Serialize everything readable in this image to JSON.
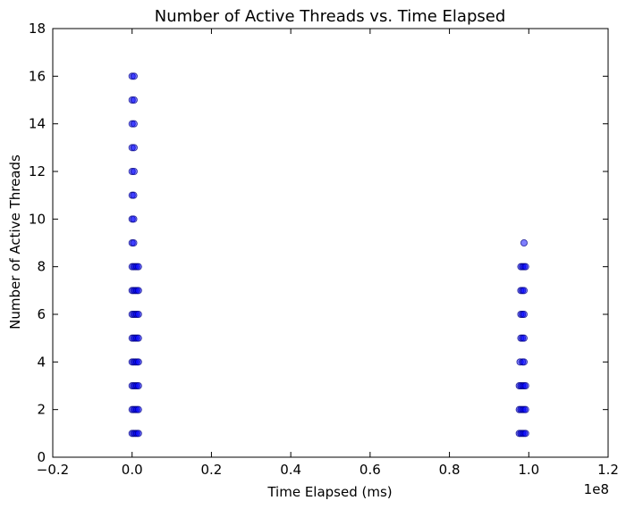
{
  "chart_data": {
    "type": "scatter",
    "title": "Number of Active Threads vs. Time Elapsed",
    "xlabel": "Time Elapsed (ms)",
    "ylabel": "Number of Active Threads",
    "x_offset_label": "1e8",
    "xlim": [
      -0.2,
      1.2
    ],
    "ylim": [
      0,
      18
    ],
    "x_scale_multiplier": 100000000,
    "x_ticks": [
      -0.2,
      0.0,
      0.2,
      0.4,
      0.6,
      0.8,
      1.0,
      1.2
    ],
    "x_tick_labels": [
      "−0.2",
      "0.0",
      "0.2",
      "0.4",
      "0.6",
      "0.8",
      "1.0",
      "1.2"
    ],
    "y_ticks": [
      0,
      2,
      4,
      6,
      8,
      10,
      12,
      14,
      16,
      18
    ],
    "y_tick_labels": [
      "0",
      "2",
      "4",
      "6",
      "8",
      "10",
      "12",
      "14",
      "16",
      "18"
    ],
    "grid": false,
    "marker_color": "#0000ff",
    "marker_edge_color": "#000080",
    "marker_opacity": 0.5,
    "series": [
      {
        "points": [
          {
            "x": 0.0,
            "y": 16
          },
          {
            "x": 0.005,
            "y": 16
          },
          {
            "x": 0.0,
            "y": 15
          },
          {
            "x": 0.005,
            "y": 15
          },
          {
            "x": 0.0,
            "y": 14
          },
          {
            "x": 0.005,
            "y": 14
          },
          {
            "x": 0.0,
            "y": 13
          },
          {
            "x": 0.005,
            "y": 13
          },
          {
            "x": 0.0,
            "y": 12
          },
          {
            "x": 0.005,
            "y": 12
          },
          {
            "x": 0.0,
            "y": 11
          },
          {
            "x": 0.004,
            "y": 11
          },
          {
            "x": 0.0,
            "y": 10
          },
          {
            "x": 0.004,
            "y": 10
          },
          {
            "x": 0.0,
            "y": 9
          },
          {
            "x": 0.004,
            "y": 9
          },
          {
            "x": 0.0,
            "y": 8
          },
          {
            "x": 0.004,
            "y": 8
          },
          {
            "x": 0.008,
            "y": 8
          },
          {
            "x": 0.012,
            "y": 8
          },
          {
            "x": 0.016,
            "y": 8
          },
          {
            "x": 0.0,
            "y": 7
          },
          {
            "x": 0.004,
            "y": 7
          },
          {
            "x": 0.008,
            "y": 7
          },
          {
            "x": 0.012,
            "y": 7
          },
          {
            "x": 0.016,
            "y": 7
          },
          {
            "x": 0.0,
            "y": 6
          },
          {
            "x": 0.004,
            "y": 6
          },
          {
            "x": 0.008,
            "y": 6
          },
          {
            "x": 0.012,
            "y": 6
          },
          {
            "x": 0.016,
            "y": 6
          },
          {
            "x": 0.0,
            "y": 5
          },
          {
            "x": 0.004,
            "y": 5
          },
          {
            "x": 0.008,
            "y": 5
          },
          {
            "x": 0.012,
            "y": 5
          },
          {
            "x": 0.016,
            "y": 5
          },
          {
            "x": 0.0,
            "y": 4
          },
          {
            "x": 0.004,
            "y": 4
          },
          {
            "x": 0.008,
            "y": 4
          },
          {
            "x": 0.012,
            "y": 4
          },
          {
            "x": 0.016,
            "y": 4
          },
          {
            "x": 0.0,
            "y": 3
          },
          {
            "x": 0.004,
            "y": 3
          },
          {
            "x": 0.008,
            "y": 3
          },
          {
            "x": 0.012,
            "y": 3
          },
          {
            "x": 0.016,
            "y": 3
          },
          {
            "x": 0.0,
            "y": 2
          },
          {
            "x": 0.004,
            "y": 2
          },
          {
            "x": 0.008,
            "y": 2
          },
          {
            "x": 0.012,
            "y": 2
          },
          {
            "x": 0.016,
            "y": 2
          },
          {
            "x": 0.0,
            "y": 1
          },
          {
            "x": 0.004,
            "y": 1
          },
          {
            "x": 0.008,
            "y": 1
          },
          {
            "x": 0.012,
            "y": 1
          },
          {
            "x": 0.016,
            "y": 1
          },
          {
            "x": 0.988,
            "y": 9
          },
          {
            "x": 0.98,
            "y": 8
          },
          {
            "x": 0.984,
            "y": 8
          },
          {
            "x": 0.988,
            "y": 8
          },
          {
            "x": 0.992,
            "y": 8
          },
          {
            "x": 0.98,
            "y": 7
          },
          {
            "x": 0.984,
            "y": 7
          },
          {
            "x": 0.988,
            "y": 7
          },
          {
            "x": 0.98,
            "y": 6
          },
          {
            "x": 0.984,
            "y": 6
          },
          {
            "x": 0.988,
            "y": 6
          },
          {
            "x": 0.98,
            "y": 5
          },
          {
            "x": 0.984,
            "y": 5
          },
          {
            "x": 0.988,
            "y": 5
          },
          {
            "x": 0.978,
            "y": 4
          },
          {
            "x": 0.984,
            "y": 4
          },
          {
            "x": 0.988,
            "y": 4
          },
          {
            "x": 0.976,
            "y": 3
          },
          {
            "x": 0.98,
            "y": 3
          },
          {
            "x": 0.984,
            "y": 3
          },
          {
            "x": 0.988,
            "y": 3
          },
          {
            "x": 0.992,
            "y": 3
          },
          {
            "x": 0.976,
            "y": 2
          },
          {
            "x": 0.98,
            "y": 2
          },
          {
            "x": 0.984,
            "y": 2
          },
          {
            "x": 0.988,
            "y": 2
          },
          {
            "x": 0.992,
            "y": 2
          },
          {
            "x": 0.976,
            "y": 1
          },
          {
            "x": 0.98,
            "y": 1
          },
          {
            "x": 0.984,
            "y": 1
          },
          {
            "x": 0.988,
            "y": 1
          },
          {
            "x": 0.992,
            "y": 1
          }
        ]
      }
    ]
  }
}
